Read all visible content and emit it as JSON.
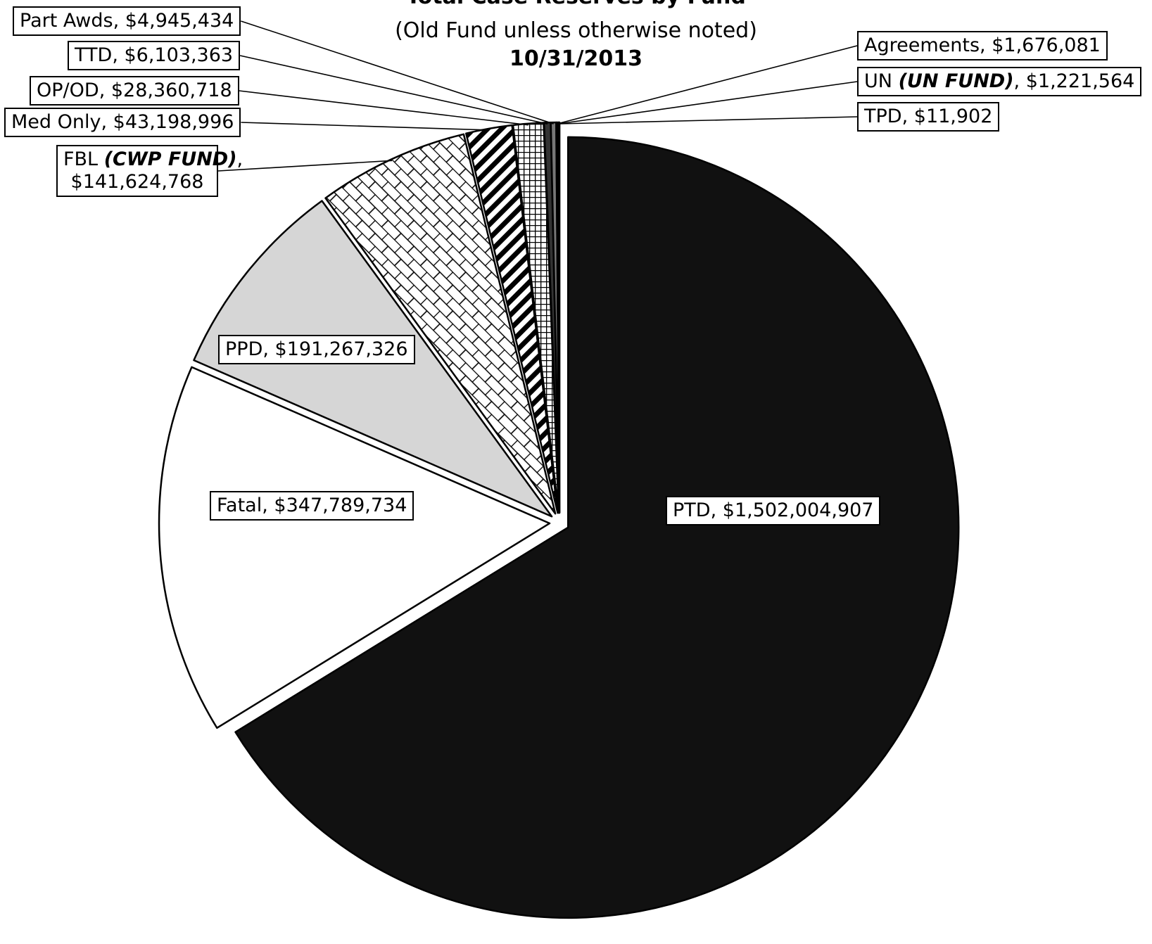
{
  "chart_data": {
    "type": "pie",
    "title": "Total Case Reserves by Fund",
    "subtitle": "(Old Fund unless otherwise noted)",
    "date": "10/31/2013",
    "legend": "none",
    "slices": [
      {
        "label": "PTD",
        "fund": "",
        "value_text": "$1,502,004,907",
        "value": 1502004907,
        "fill": "#111111",
        "pattern": "solid",
        "exploded": true
      },
      {
        "label": "Fatal",
        "fund": "",
        "value_text": "$347,789,734",
        "value": 347789734,
        "fill": "#ffffff",
        "pattern": "solid",
        "exploded": true
      },
      {
        "label": "PPD",
        "fund": "",
        "value_text": "$191,267,326",
        "value": 191267326,
        "fill": "#d6d6d6",
        "pattern": "solid",
        "exploded": true
      },
      {
        "label": "FBL",
        "fund": "(CWP FUND)",
        "value_text": "$141,624,768",
        "value": 141624768,
        "fill": "#ffffff",
        "pattern": "brick",
        "exploded": true
      },
      {
        "label": "Med Only",
        "fund": "",
        "value_text": "$43,198,996",
        "value": 43198996,
        "fill": "#ffffff",
        "pattern": "diagonal",
        "exploded": true
      },
      {
        "label": "OP/OD",
        "fund": "",
        "value_text": "$28,360,718",
        "value": 28360718,
        "fill": "#ffffff",
        "pattern": "grid",
        "exploded": true
      },
      {
        "label": "TTD",
        "fund": "",
        "value_text": "$6,103,363",
        "value": 6103363,
        "fill": "#333333",
        "pattern": "solid",
        "exploded": true
      },
      {
        "label": "Part Awds",
        "fund": "",
        "value_text": "$4,945,434",
        "value": 4945434,
        "fill": "#777777",
        "pattern": "solid",
        "exploded": true
      },
      {
        "label": "Agreements",
        "fund": "",
        "value_text": "$1,676,081",
        "value": 1676081,
        "fill": "#000000",
        "pattern": "solid",
        "exploded": true
      },
      {
        "label": "UN",
        "fund": "(UN FUND)",
        "value_text": "$1,221,564",
        "value": 1221564,
        "fill": "#ffffff",
        "pattern": "solid",
        "exploded": true
      },
      {
        "label": "TPD",
        "fund": "",
        "value_text": "$11,902",
        "value": 11902,
        "fill": "#000000",
        "pattern": "solid",
        "exploded": true
      }
    ]
  }
}
